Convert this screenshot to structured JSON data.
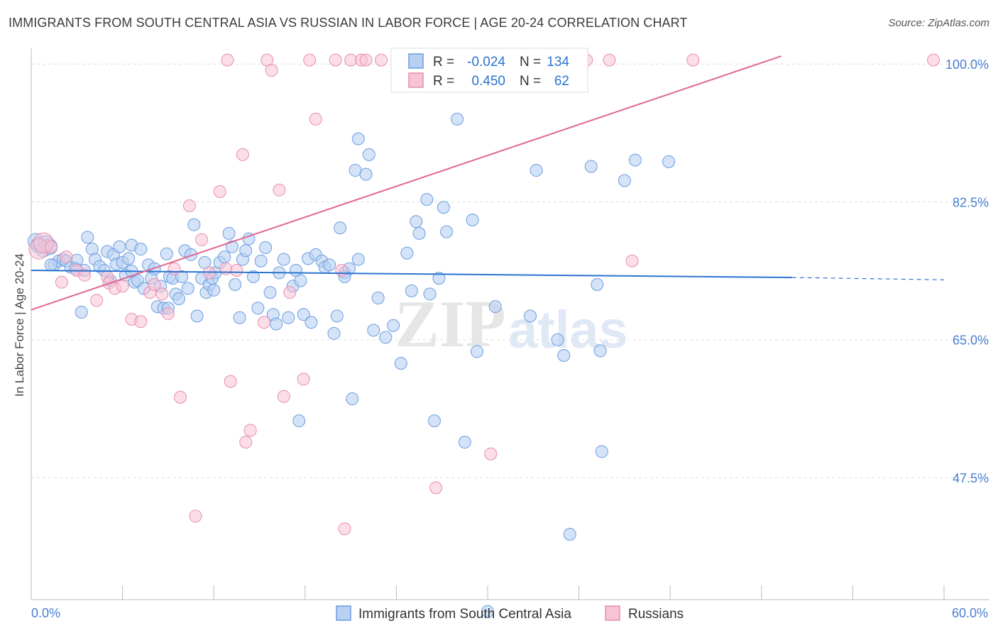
{
  "title": "IMMIGRANTS FROM SOUTH CENTRAL ASIA VS RUSSIAN IN LABOR FORCE | AGE 20-24 CORRELATION CHART",
  "source": "Source: ZipAtlas.com",
  "watermark": {
    "zip": "ZIP",
    "atlas": "atlas"
  },
  "stats_legend": [
    {
      "r_label": "R =",
      "r_value": "-0.024",
      "n_label": "N =",
      "n_value": "134"
    },
    {
      "r_label": "R =",
      "r_value": "0.450",
      "n_label": "N =",
      "n_value": "62"
    }
  ],
  "bottom_legend": [
    {
      "label": "Immigrants from South Central Asia"
    },
    {
      "label": "Russians"
    }
  ],
  "colors": {
    "blue_fill": "#b8d0f2",
    "blue_stroke": "#6d9ee0",
    "blue_line": "#2b74d0",
    "pink_fill": "#f7c3d5",
    "pink_stroke": "#e98fb1",
    "pink_line": "#e0688f",
    "tick_label": "#4a7fd0",
    "grid": "#dddddd"
  },
  "chart_data": {
    "type": "scatter",
    "title": "IMMIGRANTS FROM SOUTH CENTRAL ASIA VS RUSSIAN IN LABOR FORCE | AGE 20-24 CORRELATION CHART",
    "xlabel": "",
    "ylabel": "In Labor Force | Age 20-24",
    "xlim": [
      0,
      60
    ],
    "ylim": [
      32,
      102
    ],
    "x_tick_labels": [
      "0.0%",
      "60.0%"
    ],
    "y_ticks": [
      47.5,
      65.0,
      82.5,
      100.0
    ],
    "y_tick_labels": [
      "47.5%",
      "65.0%",
      "82.5%",
      "100.0%"
    ],
    "grid": true,
    "legend_position": "top-center",
    "series": [
      {
        "name": "Immigrants from South Central Asia",
        "r": -0.024,
        "n": 134,
        "trend": {
          "x": [
            0,
            50
          ],
          "y": [
            73.8,
            72.9
          ],
          "dashed_to": [
            60,
            72.6
          ]
        },
        "points": [
          [
            0.3,
            77.5
          ],
          [
            0.5,
            77.0
          ],
          [
            0.8,
            76.5
          ],
          [
            1.0,
            77.2
          ],
          [
            1.2,
            76.8
          ],
          [
            1.5,
            74.5
          ],
          [
            1.8,
            75.0
          ],
          [
            2.1,
            75.2
          ],
          [
            2.3,
            75.0
          ],
          [
            2.6,
            74.2
          ],
          [
            3.0,
            75.1
          ],
          [
            3.5,
            73.8
          ],
          [
            3.3,
            68.5
          ],
          [
            3.7,
            78.0
          ],
          [
            4.0,
            76.5
          ],
          [
            4.2,
            75.2
          ],
          [
            4.5,
            74.3
          ],
          [
            4.8,
            73.8
          ],
          [
            5.0,
            76.2
          ],
          [
            5.2,
            72.5
          ],
          [
            5.4,
            75.8
          ],
          [
            5.6,
            74.6
          ],
          [
            5.8,
            76.8
          ],
          [
            6.0,
            74.8
          ],
          [
            6.2,
            73.2
          ],
          [
            6.4,
            75.3
          ],
          [
            6.6,
            77.0
          ],
          [
            6.8,
            72.3
          ],
          [
            7.0,
            72.5
          ],
          [
            7.2,
            76.5
          ],
          [
            7.4,
            71.5
          ],
          [
            7.7,
            74.5
          ],
          [
            7.9,
            72.8
          ],
          [
            8.1,
            74.0
          ],
          [
            8.3,
            69.2
          ],
          [
            8.5,
            71.8
          ],
          [
            8.7,
            69.0
          ],
          [
            8.9,
            75.9
          ],
          [
            9.1,
            73.0
          ],
          [
            9.3,
            72.8
          ],
          [
            9.5,
            70.8
          ],
          [
            9.7,
            70.2
          ],
          [
            9.9,
            73.0
          ],
          [
            10.1,
            76.3
          ],
          [
            10.3,
            71.5
          ],
          [
            10.5,
            75.8
          ],
          [
            10.7,
            79.6
          ],
          [
            10.9,
            68.0
          ],
          [
            11.2,
            72.8
          ],
          [
            11.5,
            71.0
          ],
          [
            11.7,
            72.0
          ],
          [
            11.9,
            72.8
          ],
          [
            12.1,
            73.5
          ],
          [
            12.4,
            74.8
          ],
          [
            12.7,
            75.5
          ],
          [
            13.0,
            78.5
          ],
          [
            13.2,
            76.8
          ],
          [
            13.4,
            72.0
          ],
          [
            13.7,
            67.8
          ],
          [
            13.9,
            75.2
          ],
          [
            14.1,
            76.3
          ],
          [
            14.3,
            77.8
          ],
          [
            14.6,
            73.0
          ],
          [
            14.9,
            69.0
          ],
          [
            15.1,
            75.0
          ],
          [
            15.4,
            76.7
          ],
          [
            15.7,
            71.0
          ],
          [
            15.9,
            68.2
          ],
          [
            16.1,
            67.0
          ],
          [
            16.3,
            73.5
          ],
          [
            16.6,
            75.2
          ],
          [
            16.9,
            67.8
          ],
          [
            17.2,
            71.8
          ],
          [
            17.4,
            73.8
          ],
          [
            17.7,
            72.5
          ],
          [
            17.9,
            68.2
          ],
          [
            18.2,
            75.3
          ],
          [
            18.4,
            67.2
          ],
          [
            18.7,
            75.8
          ],
          [
            19.1,
            75.0
          ],
          [
            19.3,
            74.2
          ],
          [
            19.6,
            74.5
          ],
          [
            19.9,
            65.8
          ],
          [
            20.1,
            68.0
          ],
          [
            20.3,
            79.2
          ],
          [
            20.6,
            73.5
          ],
          [
            20.9,
            74.0
          ],
          [
            21.1,
            57.5
          ],
          [
            21.5,
            75.2
          ],
          [
            21.3,
            86.5
          ],
          [
            21.5,
            90.5
          ],
          [
            22.0,
            86.0
          ],
          [
            22.2,
            88.5
          ],
          [
            22.5,
            66.2
          ],
          [
            22.8,
            70.3
          ],
          [
            23.3,
            65.3
          ],
          [
            23.8,
            66.8
          ],
          [
            24.3,
            62.0
          ],
          [
            24.7,
            76.0
          ],
          [
            25.0,
            71.2
          ],
          [
            25.3,
            80.0
          ],
          [
            25.5,
            78.5
          ],
          [
            26.0,
            82.8
          ],
          [
            26.2,
            70.8
          ],
          [
            26.5,
            54.7
          ],
          [
            26.8,
            72.8
          ],
          [
            27.1,
            81.8
          ],
          [
            27.3,
            78.7
          ],
          [
            28.0,
            93.0
          ],
          [
            28.5,
            52.0
          ],
          [
            29.0,
            80.2
          ],
          [
            29.3,
            63.5
          ],
          [
            30.0,
            30.5
          ],
          [
            30.5,
            69.2
          ],
          [
            32.8,
            68.0
          ],
          [
            33.2,
            86.5
          ],
          [
            34.6,
            65.0
          ],
          [
            35.0,
            63.0
          ],
          [
            35.4,
            40.3
          ],
          [
            36.8,
            87.0
          ],
          [
            37.2,
            72.0
          ],
          [
            37.4,
            63.6
          ],
          [
            37.5,
            50.8
          ],
          [
            39.0,
            85.2
          ],
          [
            39.7,
            87.8
          ],
          [
            41.9,
            87.6
          ],
          [
            17.6,
            54.7
          ],
          [
            20.6,
            73.0
          ],
          [
            1.3,
            74.5
          ],
          [
            2.9,
            74.0
          ],
          [
            11.4,
            74.8
          ],
          [
            6.6,
            73.7
          ],
          [
            9.0,
            69.0
          ],
          [
            12.0,
            71.3
          ]
        ]
      },
      {
        "name": "Russians",
        "r": 0.45,
        "n": 62,
        "trend": {
          "x": [
            0,
            49.3
          ],
          "y": [
            68.8,
            101.0
          ]
        },
        "points": [
          [
            0.5,
            76.5
          ],
          [
            0.8,
            77.3
          ],
          [
            1.3,
            76.8
          ],
          [
            2.0,
            72.3
          ],
          [
            2.3,
            75.5
          ],
          [
            3.0,
            73.8
          ],
          [
            3.5,
            73.2
          ],
          [
            4.3,
            70.0
          ],
          [
            5.0,
            73.0
          ],
          [
            5.1,
            72.2
          ],
          [
            5.5,
            71.5
          ],
          [
            6.0,
            71.8
          ],
          [
            6.6,
            67.6
          ],
          [
            7.2,
            67.3
          ],
          [
            7.8,
            71.0
          ],
          [
            8.1,
            72.0
          ],
          [
            8.6,
            70.8
          ],
          [
            9.0,
            68.3
          ],
          [
            9.4,
            74.0
          ],
          [
            9.8,
            57.7
          ],
          [
            10.4,
            82.0
          ],
          [
            10.8,
            42.6
          ],
          [
            11.2,
            77.7
          ],
          [
            11.7,
            73.5
          ],
          [
            12.4,
            83.8
          ],
          [
            12.8,
            74.0
          ],
          [
            12.9,
            100.5
          ],
          [
            13.1,
            59.7
          ],
          [
            13.5,
            73.8
          ],
          [
            13.9,
            88.5
          ],
          [
            14.1,
            52.0
          ],
          [
            14.4,
            53.5
          ],
          [
            15.3,
            67.2
          ],
          [
            15.5,
            100.5
          ],
          [
            15.8,
            99.2
          ],
          [
            16.3,
            84.0
          ],
          [
            16.6,
            57.8
          ],
          [
            17.0,
            71.0
          ],
          [
            17.9,
            60.0
          ],
          [
            18.3,
            100.5
          ],
          [
            18.7,
            93.0
          ],
          [
            20.0,
            100.5
          ],
          [
            20.4,
            73.8
          ],
          [
            20.6,
            41.0
          ],
          [
            21.0,
            100.5
          ],
          [
            21.7,
            100.5
          ],
          [
            22.0,
            100.5
          ],
          [
            23.0,
            100.5
          ],
          [
            24.2,
            100.5
          ],
          [
            25.0,
            100.5
          ],
          [
            26.1,
            100.5
          ],
          [
            26.5,
            100.5
          ],
          [
            27.0,
            100.5
          ],
          [
            29.8,
            100.5
          ],
          [
            30.2,
            50.5
          ],
          [
            31.6,
            100.5
          ],
          [
            36.5,
            100.5
          ],
          [
            38.0,
            100.5
          ],
          [
            39.5,
            75.0
          ],
          [
            43.5,
            100.5
          ],
          [
            59.3,
            100.5
          ],
          [
            26.6,
            46.2
          ]
        ]
      }
    ]
  }
}
